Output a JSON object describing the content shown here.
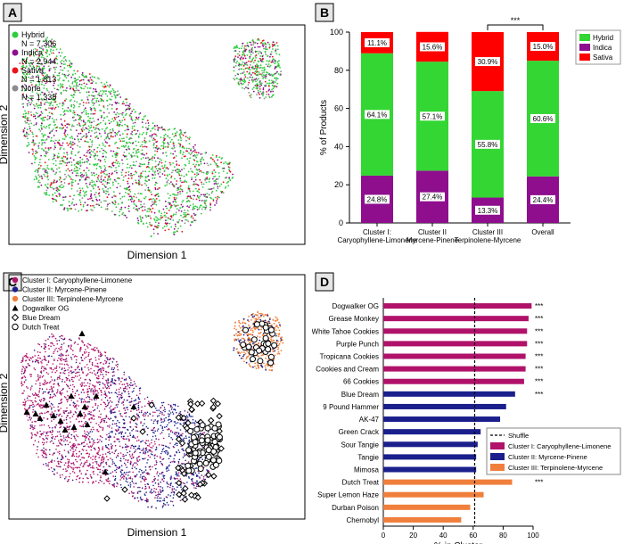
{
  "figure": {
    "panels": {
      "A": {
        "label": "A",
        "xlabel": "Dimension 1",
        "ylabel": "Dimension 2",
        "legend": [
          {
            "name": "Hybrid",
            "count": "N = 7,306",
            "color": "#2ecc40"
          },
          {
            "name": "Indica",
            "count": "N = 2,944",
            "color": "#8e0e8e"
          },
          {
            "name": "Sativa",
            "count": "N = 1,813",
            "color": "#e8141b"
          },
          {
            "name": "None",
            "count": "N = 1,338",
            "color": "#8c8c8c"
          }
        ]
      },
      "C": {
        "label": "C",
        "xlabel": "Dimension 1",
        "ylabel": "Dimension 2",
        "legend": [
          {
            "name": "Cluster I: Caryophyllene-Limonene",
            "marker": "circle",
            "color": "#b0126a"
          },
          {
            "name": "Cluster II: Myrcene-Pinene",
            "marker": "circle",
            "color": "#1a1f8c"
          },
          {
            "name": "Cluster III: Terpinolene-Myrcene",
            "marker": "circle",
            "color": "#f07f3c"
          },
          {
            "name": "Dogwalker OG",
            "marker": "triangle",
            "color": "#000000"
          },
          {
            "name": "Blue Dream",
            "marker": "diamond",
            "color": "#000000"
          },
          {
            "name": "Dutch Treat",
            "marker": "open-circle",
            "color": "#000000"
          }
        ]
      }
    }
  },
  "chart_data": [
    {
      "panel": "B",
      "label": "B",
      "type": "bar",
      "stacked": true,
      "categories": [
        [
          "Cluster I:",
          "Caryophyllene-Limonene"
        ],
        [
          "Cluster II",
          "Myrcene-Pinene"
        ],
        [
          "Cluster III",
          "Terpinolene-Myrcene"
        ],
        [
          "Overall"
        ]
      ],
      "series": [
        {
          "name": "Indica",
          "color": "#8e0e8e",
          "values": [
            24.8,
            27.4,
            13.3,
            24.4
          ],
          "labels": [
            "24.8%",
            "27.4%",
            "13.3%",
            "24.4%"
          ]
        },
        {
          "name": "Hybrid",
          "color": "#33d633",
          "values": [
            64.1,
            57.1,
            55.8,
            60.6
          ],
          "labels": [
            "64.1%",
            "57.1%",
            "55.8%",
            "60.6%"
          ]
        },
        {
          "name": "Sativa",
          "color": "#ff0000",
          "values": [
            11.1,
            15.6,
            30.9,
            15.0
          ],
          "labels": [
            "11.1%",
            "15.6%",
            "30.9%",
            "15.0%"
          ]
        }
      ],
      "legend_order": [
        "Hybrid",
        "Indica",
        "Sativa"
      ],
      "ylabel": "% of Products",
      "xlabel": "",
      "ylim": [
        0,
        100
      ],
      "yticks": [
        0,
        20,
        40,
        60,
        80,
        100
      ],
      "significance": {
        "text": "***",
        "between": [
          2,
          3
        ]
      },
      "legend_position": "top-right"
    },
    {
      "panel": "D",
      "label": "D",
      "type": "bar",
      "orientation": "horizontal",
      "categories": [
        "Dogwalker OG",
        "Grease Monkey",
        "White Tahoe Cookies",
        "Purple Punch",
        "Tropicana Cookies",
        "Cookies and Cream",
        "66 Cookies",
        "Blue Dream",
        "9 Pound Hammer",
        "AK-47",
        "Green Crack",
        "Sour Tangie",
        "Tangie",
        "Mimosa",
        "Dutch Treat",
        "Super Lemon Haze",
        "Durban Poison",
        "Chernobyl"
      ],
      "values": [
        99,
        97,
        96,
        96,
        95,
        95,
        94,
        88,
        82,
        78,
        65,
        63,
        62,
        62,
        86,
        67,
        58,
        52
      ],
      "cluster": [
        1,
        1,
        1,
        1,
        1,
        1,
        1,
        2,
        2,
        2,
        2,
        2,
        2,
        2,
        3,
        3,
        3,
        3
      ],
      "significance": [
        "***",
        "***",
        "***",
        "***",
        "***",
        "***",
        "***",
        "***",
        "",
        "",
        "",
        "",
        "",
        "",
        "***",
        "",
        "",
        ""
      ],
      "shuffle": 61,
      "xlabel": "% in Cluster",
      "ylabel": "",
      "xlim": [
        0,
        100
      ],
      "xticks": [
        0,
        20,
        40,
        60,
        80,
        100
      ],
      "legend": [
        {
          "name": "Shuffle",
          "style": "dashed",
          "color": "#000000"
        },
        {
          "name": "Cluster I: Caryophyllene-Limonene",
          "color": "#b0126a"
        },
        {
          "name": "Cluster II: Myrcene-Pinene",
          "color": "#1a1f8c"
        },
        {
          "name": "Cluster III: Terpinolene-Myrcene",
          "color": "#f07f3c"
        }
      ],
      "legend_position": "right"
    }
  ]
}
